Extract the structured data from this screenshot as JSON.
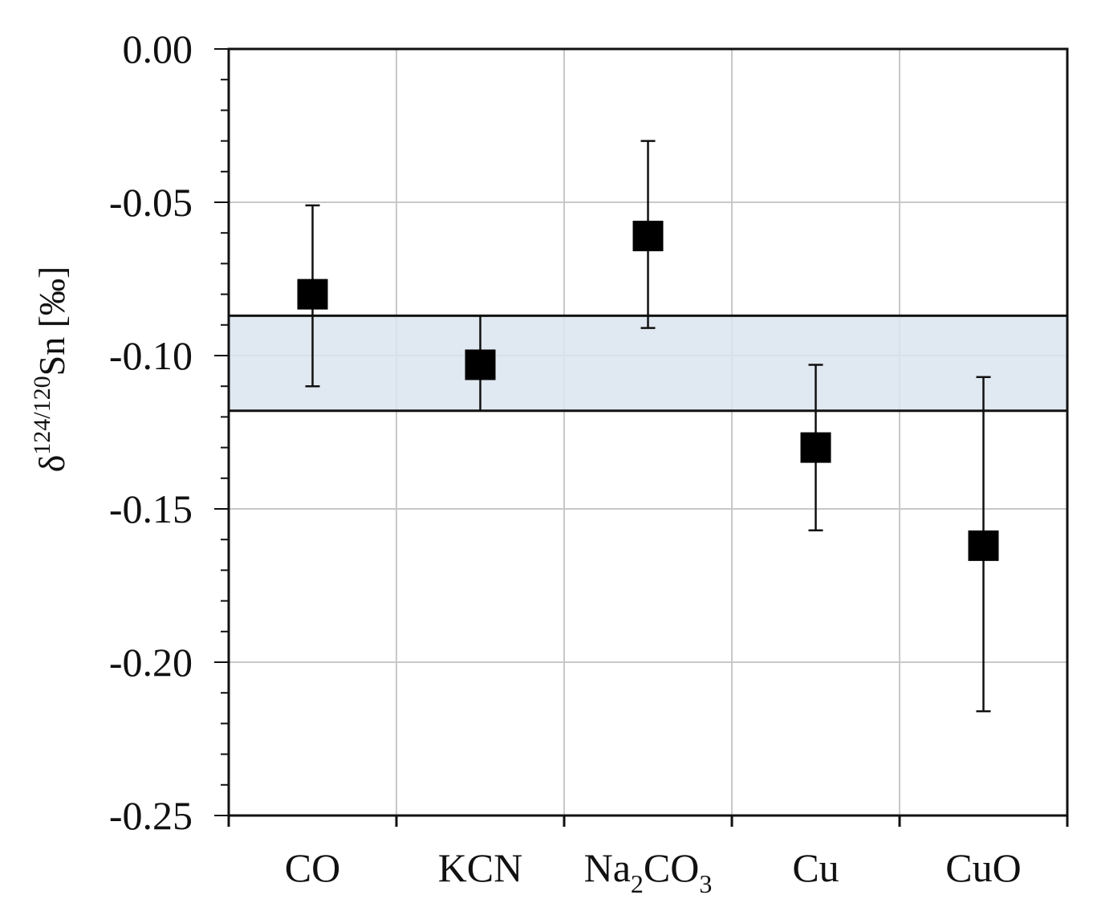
{
  "chart_data": {
    "type": "scatter",
    "title": "",
    "xlabel": "",
    "ylabel": {
      "prefix": "δ",
      "superscript": "124/120",
      "main": "Sn [‰]"
    },
    "ylim": [
      -0.25,
      0.0
    ],
    "yticks": [
      "0.00",
      "-0.05",
      "-0.10",
      "-0.15",
      "-0.20",
      "-0.25"
    ],
    "grid": true,
    "categories": [
      {
        "base": "CO",
        "parts": [
          {
            "t": "CO",
            "sub": false
          }
        ]
      },
      {
        "base": "KCN",
        "parts": [
          {
            "t": "KCN",
            "sub": false
          }
        ]
      },
      {
        "base": "Na2CO3",
        "parts": [
          {
            "t": "Na",
            "sub": false
          },
          {
            "t": "2",
            "sub": true
          },
          {
            "t": "CO",
            "sub": false
          },
          {
            "t": "3",
            "sub": true
          }
        ]
      },
      {
        "base": "Cu",
        "parts": [
          {
            "t": "Cu",
            "sub": false
          }
        ]
      },
      {
        "base": "CuO",
        "parts": [
          {
            "t": "CuO",
            "sub": false
          }
        ]
      }
    ],
    "series": [
      {
        "values": [
          -0.08,
          -0.103,
          -0.061,
          -0.13,
          -0.162
        ],
        "err_low": [
          -0.11,
          -0.118,
          -0.091,
          -0.157,
          -0.216
        ],
        "err_high": [
          -0.051,
          -0.087,
          -0.03,
          -0.103,
          -0.107
        ]
      }
    ],
    "reference_band": {
      "y_low": -0.118,
      "y_high": -0.087,
      "fill": "#dbe4ef"
    },
    "colors": {
      "marker": "#000000",
      "grid": "#c8c8c8",
      "axis": "#111111"
    }
  }
}
